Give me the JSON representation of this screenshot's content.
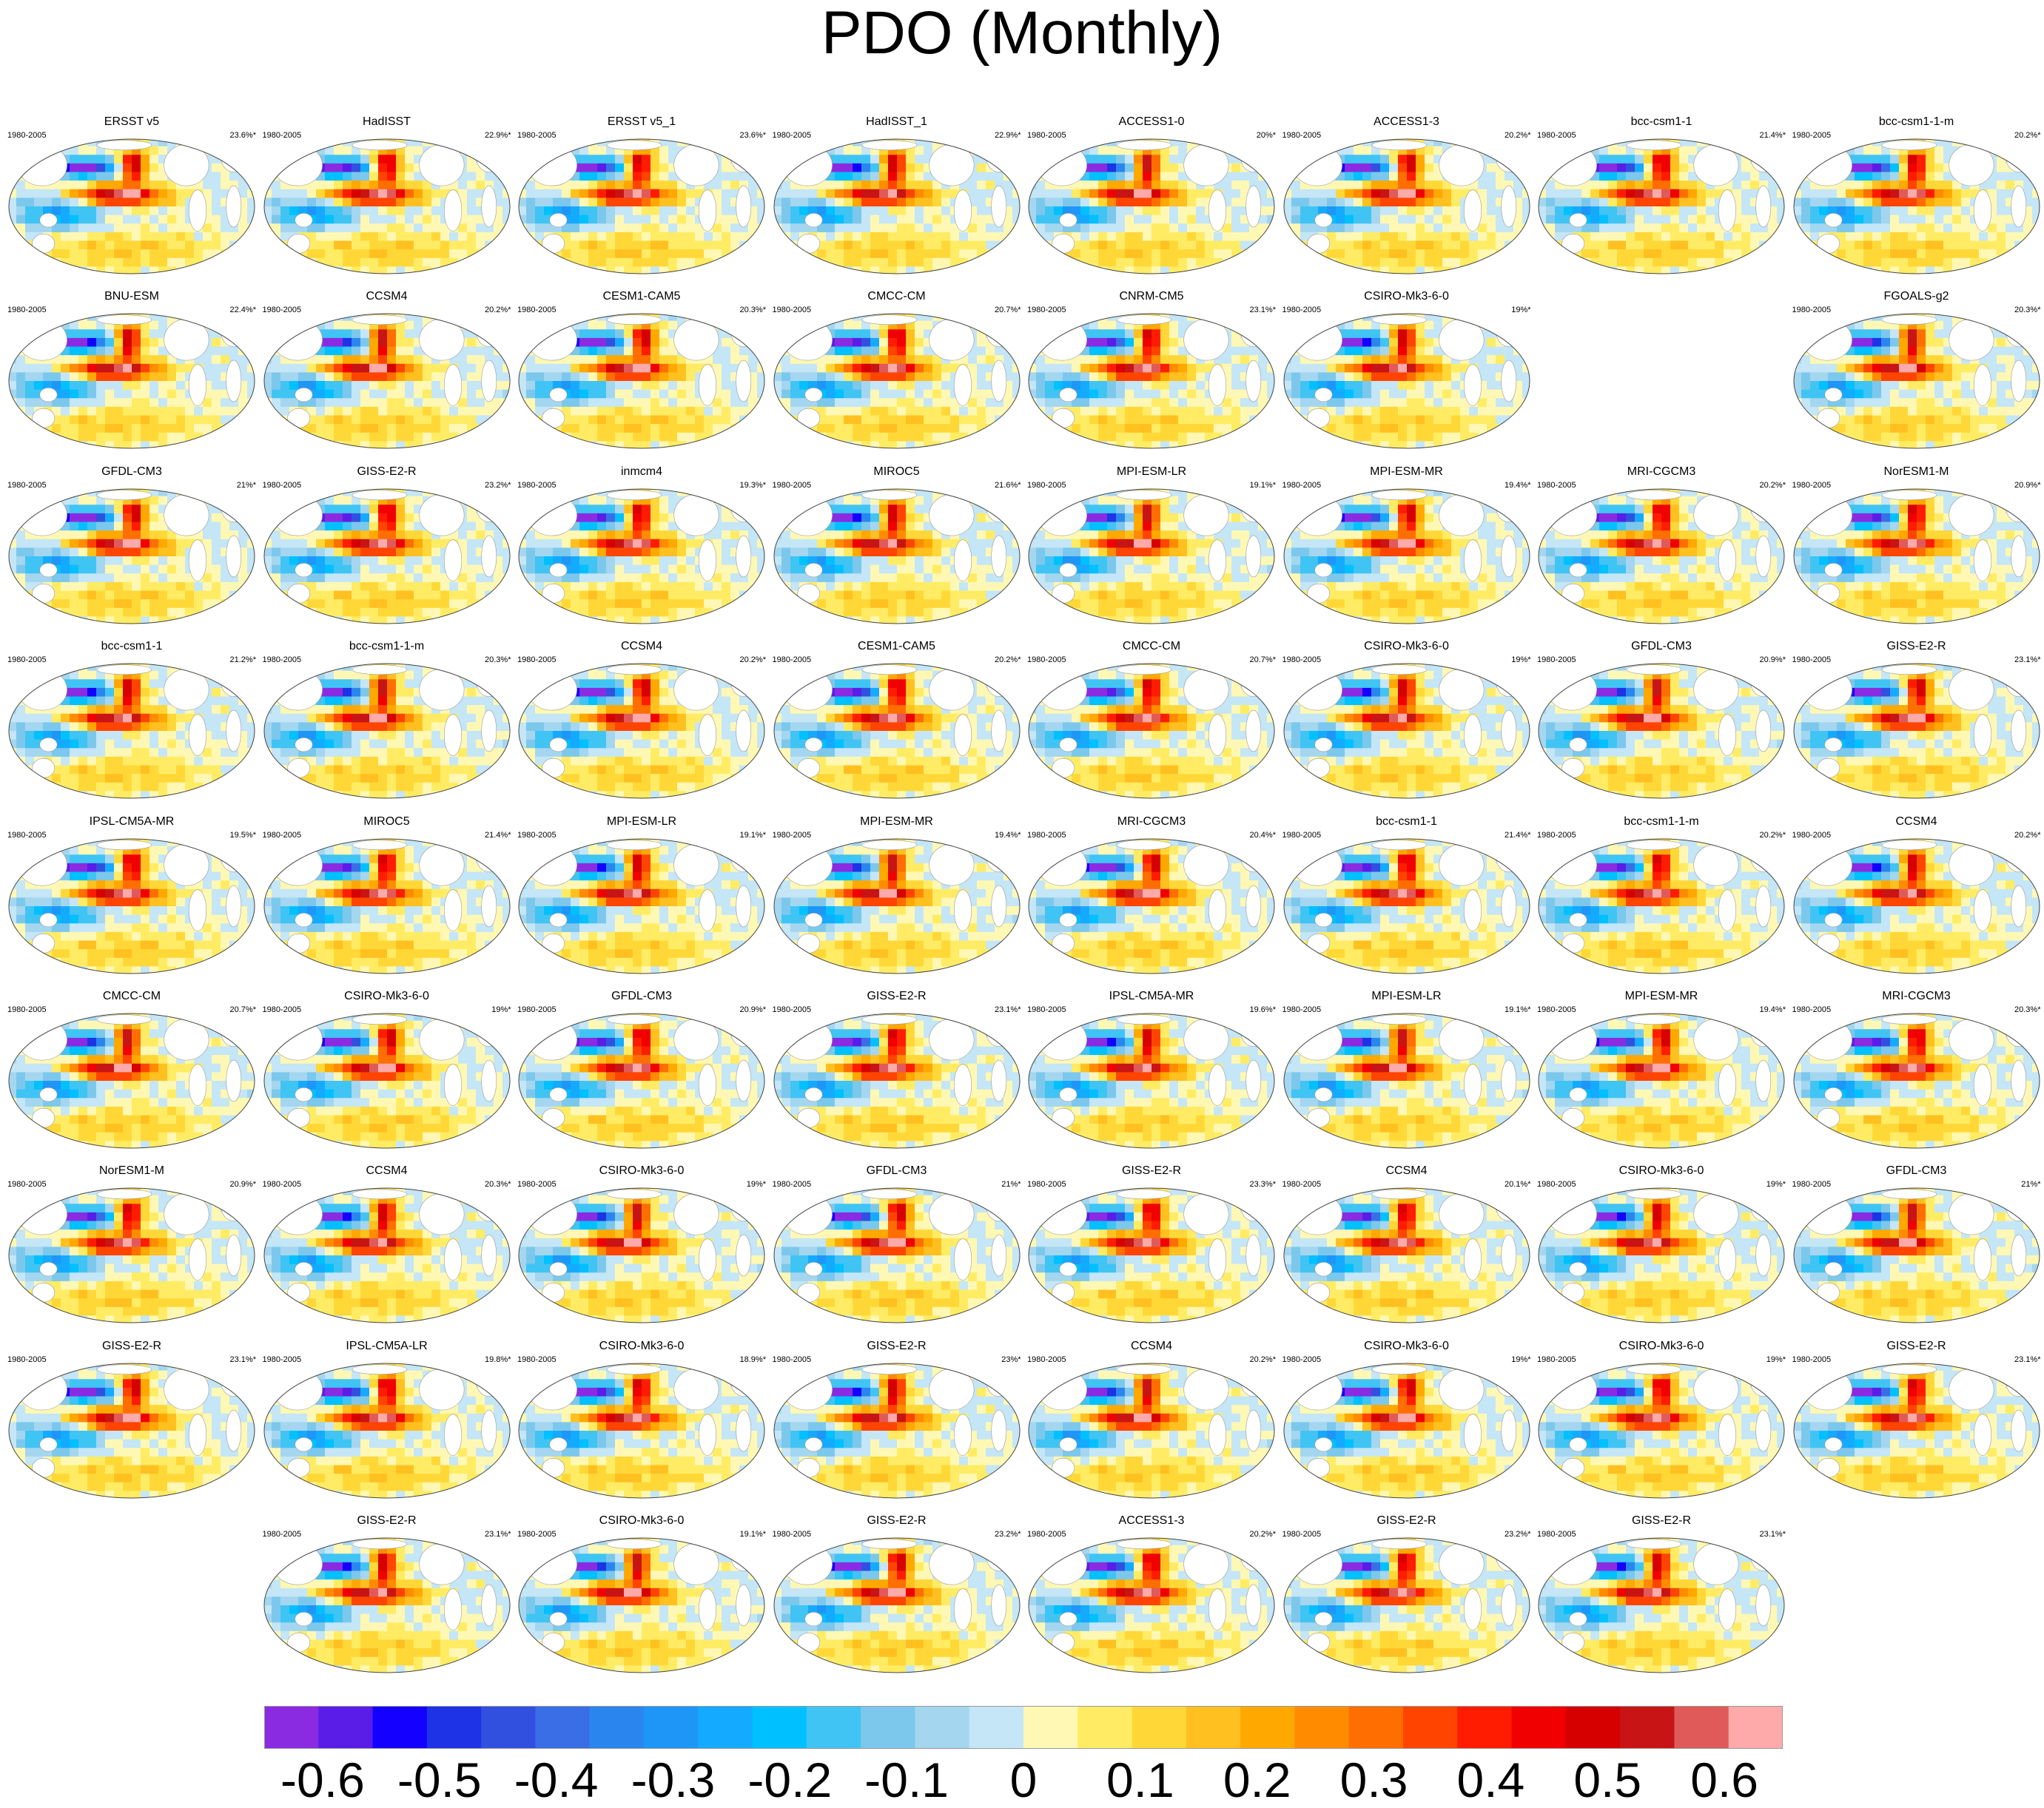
{
  "title": "PDO (Monthly)",
  "chart_data": {
    "type": "heatmap",
    "title": "PDO (Monthly)",
    "panels": [
      {
        "name": "ERSST v5",
        "period": "1980-2005",
        "variance": "23.6%*"
      },
      {
        "name": "HadISST",
        "period": "1980-2005",
        "variance": "22.9%*"
      },
      {
        "name": "ERSST v5_1",
        "period": "1980-2005",
        "variance": "23.6%*"
      },
      {
        "name": "HadISST_1",
        "period": "1980-2005",
        "variance": "22.9%*"
      },
      {
        "name": "ACCESS1-0",
        "period": "1980-2005",
        "variance": "20%*"
      },
      {
        "name": "ACCESS1-3",
        "period": "1980-2005",
        "variance": "20.2%*"
      },
      {
        "name": "bcc-csm1-1",
        "period": "1980-2005",
        "variance": "21.4%*"
      },
      {
        "name": "bcc-csm1-1-m",
        "period": "1980-2005",
        "variance": "20.2%*"
      },
      {
        "name": "BNU-ESM",
        "period": "1980-2005",
        "variance": "22.4%*"
      },
      {
        "name": "CCSM4",
        "period": "1980-2005",
        "variance": "20.2%*"
      },
      {
        "name": "CESM1-CAM5",
        "period": "1980-2005",
        "variance": "20.3%*"
      },
      {
        "name": "CMCC-CM",
        "period": "1980-2005",
        "variance": "20.7%*"
      },
      {
        "name": "CNRM-CM5",
        "period": "1980-2005",
        "variance": "23.1%*"
      },
      {
        "name": "CSIRO-Mk3-6-0",
        "period": "1980-2005",
        "variance": "19%*"
      },
      {
        "name": "FGOALS-g2",
        "period": "1980-2005",
        "variance": "20.3%*"
      },
      {
        "name": "GFDL-CM3",
        "period": "1980-2005",
        "variance": "21%*"
      },
      {
        "name": "GISS-E2-R",
        "period": "1980-2005",
        "variance": "23.2%*"
      },
      {
        "name": "inmcm4",
        "period": "1980-2005",
        "variance": "19.3%*"
      },
      {
        "name": "MIROC5",
        "period": "1980-2005",
        "variance": "21.6%*"
      },
      {
        "name": "MPI-ESM-LR",
        "period": "1980-2005",
        "variance": "19.1%*"
      },
      {
        "name": "MPI-ESM-MR",
        "period": "1980-2005",
        "variance": "19.4%*"
      },
      {
        "name": "MRI-CGCM3",
        "period": "1980-2005",
        "variance": "20.2%*"
      },
      {
        "name": "NorESM1-M",
        "period": "1980-2005",
        "variance": "20.9%*"
      },
      {
        "name": "bcc-csm1-1",
        "period": "1980-2005",
        "variance": "21.2%*"
      },
      {
        "name": "bcc-csm1-1-m",
        "period": "1980-2005",
        "variance": "20.3%*"
      },
      {
        "name": "CCSM4",
        "period": "1980-2005",
        "variance": "20.2%*"
      },
      {
        "name": "CESM1-CAM5",
        "period": "1980-2005",
        "variance": "20.2%*"
      },
      {
        "name": "CMCC-CM",
        "period": "1980-2005",
        "variance": "20.7%*"
      },
      {
        "name": "CSIRO-Mk3-6-0",
        "period": "1980-2005",
        "variance": "19%*"
      },
      {
        "name": "GFDL-CM3",
        "period": "1980-2005",
        "variance": "20.9%*"
      },
      {
        "name": "GISS-E2-R",
        "period": "1980-2005",
        "variance": "23.1%*"
      },
      {
        "name": "IPSL-CM5A-MR",
        "period": "1980-2005",
        "variance": "19.5%*"
      },
      {
        "name": "MIROC5",
        "period": "1980-2005",
        "variance": "21.4%*"
      },
      {
        "name": "MPI-ESM-LR",
        "period": "1980-2005",
        "variance": "19.1%*"
      },
      {
        "name": "MPI-ESM-MR",
        "period": "1980-2005",
        "variance": "19.4%*"
      },
      {
        "name": "MRI-CGCM3",
        "period": "1980-2005",
        "variance": "20.4%*"
      },
      {
        "name": "bcc-csm1-1",
        "period": "1980-2005",
        "variance": "21.4%*"
      },
      {
        "name": "bcc-csm1-1-m",
        "period": "1980-2005",
        "variance": "20.2%*"
      },
      {
        "name": "CCSM4",
        "period": "1980-2005",
        "variance": "20.2%*"
      },
      {
        "name": "CMCC-CM",
        "period": "1980-2005",
        "variance": "20.7%*"
      },
      {
        "name": "CSIRO-Mk3-6-0",
        "period": "1980-2005",
        "variance": "19%*"
      },
      {
        "name": "GFDL-CM3",
        "period": "1980-2005",
        "variance": "20.9%*"
      },
      {
        "name": "GISS-E2-R",
        "period": "1980-2005",
        "variance": "23.1%*"
      },
      {
        "name": "IPSL-CM5A-MR",
        "period": "1980-2005",
        "variance": "19.6%*"
      },
      {
        "name": "MPI-ESM-LR",
        "period": "1980-2005",
        "variance": "19.1%*"
      },
      {
        "name": "MPI-ESM-MR",
        "period": "1980-2005",
        "variance": "19.4%*"
      },
      {
        "name": "MRI-CGCM3",
        "period": "1980-2005",
        "variance": "20.3%*"
      },
      {
        "name": "NorESM1-M",
        "period": "1980-2005",
        "variance": "20.9%*"
      },
      {
        "name": "CCSM4",
        "period": "1980-2005",
        "variance": "20.3%*"
      },
      {
        "name": "CSIRO-Mk3-6-0",
        "period": "1980-2005",
        "variance": "19%*"
      },
      {
        "name": "GFDL-CM3",
        "period": "1980-2005",
        "variance": "21%*"
      },
      {
        "name": "GISS-E2-R",
        "period": "1980-2005",
        "variance": "23.3%*"
      },
      {
        "name": "CCSM4",
        "period": "1980-2005",
        "variance": "20.1%*"
      },
      {
        "name": "CSIRO-Mk3-6-0",
        "period": "1980-2005",
        "variance": "19%*"
      },
      {
        "name": "GFDL-CM3",
        "period": "1980-2005",
        "variance": "21%*"
      },
      {
        "name": "GISS-E2-R",
        "period": "1980-2005",
        "variance": "23.1%*"
      },
      {
        "name": "IPSL-CM5A-LR",
        "period": "1980-2005",
        "variance": "19.8%*"
      },
      {
        "name": "CSIRO-Mk3-6-0",
        "period": "1980-2005",
        "variance": "18.9%*"
      },
      {
        "name": "GISS-E2-R",
        "period": "1980-2005",
        "variance": "23%*"
      },
      {
        "name": "CCSM4",
        "period": "1980-2005",
        "variance": "20.2%*"
      },
      {
        "name": "CSIRO-Mk3-6-0",
        "period": "1980-2005",
        "variance": "19%*"
      },
      {
        "name": "CSIRO-Mk3-6-0",
        "period": "1980-2005",
        "variance": "19%*"
      },
      {
        "name": "GISS-E2-R",
        "period": "1980-2005",
        "variance": "23.1%*"
      },
      {
        "name": "GISS-E2-R",
        "period": "1980-2005",
        "variance": "23.1%*"
      },
      {
        "name": "CSIRO-Mk3-6-0",
        "period": "1980-2005",
        "variance": "19.1%*"
      },
      {
        "name": "GISS-E2-R",
        "period": "1980-2005",
        "variance": "23.2%*"
      },
      {
        "name": "ACCESS1-3",
        "period": "1980-2005",
        "variance": "20.2%*"
      },
      {
        "name": "GISS-E2-R",
        "period": "1980-2005",
        "variance": "23.2%*"
      },
      {
        "name": "GISS-E2-R",
        "period": "1980-2005",
        "variance": "23.1%*"
      }
    ],
    "colorbar": {
      "colors": [
        "#8a2be2",
        "#5a1de8",
        "#1400ff",
        "#1e32e6",
        "#3250e0",
        "#3a6ee6",
        "#2a86ee",
        "#1e96f8",
        "#14aaff",
        "#00c0ff",
        "#40c4f4",
        "#7cc8ec",
        "#a4d6f0",
        "#c4e6f6",
        "#fff8b4",
        "#ffec64",
        "#ffd838",
        "#ffc020",
        "#ffa800",
        "#ff8c00",
        "#ff6e00",
        "#ff4400",
        "#ff1c00",
        "#f00000",
        "#d60000",
        "#c81414",
        "#e05a5a",
        "#ffaaaa"
      ],
      "tick_labels": [
        "-0.6",
        "-0.5",
        "-0.4",
        "-0.3",
        "-0.2",
        "-0.1",
        "0",
        "0.1",
        "0.2",
        "0.3",
        "0.4",
        "0.5",
        "0.6"
      ],
      "tick_values": [
        -0.6,
        -0.5,
        -0.4,
        -0.3,
        -0.2,
        -0.1,
        0,
        0.1,
        0.2,
        0.3,
        0.4,
        0.5,
        0.6
      ],
      "range": [
        -0.65,
        0.65
      ]
    }
  }
}
